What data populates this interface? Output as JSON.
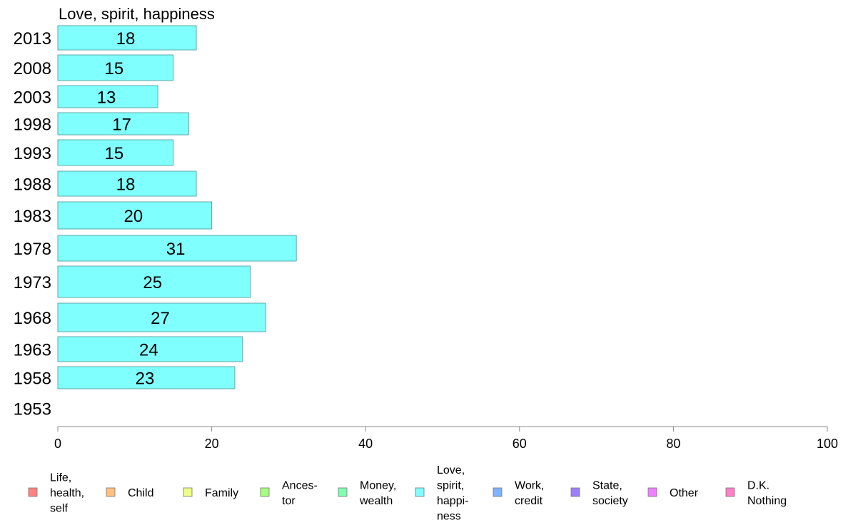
{
  "chart_data": {
    "type": "bar",
    "orientation": "horizontal",
    "title": "Love, spirit, happiness",
    "categories": [
      "2013",
      "2008",
      "2003",
      "1998",
      "1993",
      "1988",
      "1983",
      "1978",
      "1973",
      "1968",
      "1963",
      "1958",
      "1953"
    ],
    "values": [
      18,
      15,
      13,
      17,
      15,
      18,
      20,
      31,
      25,
      27,
      24,
      23,
      null
    ],
    "value_labels": [
      "18",
      "15",
      "13",
      "17",
      "15",
      "18",
      "20",
      "31",
      "25",
      "27",
      "24",
      "23",
      ""
    ],
    "xlim": [
      0,
      100
    ],
    "xticks": [
      "0",
      "20",
      "40",
      "60",
      "80",
      "100"
    ],
    "grid": false,
    "legend_position": "bottom",
    "bar_color": "#80ffff",
    "legend": [
      {
        "label": "Life, health, self",
        "lines": [
          "Life,",
          "health,",
          "self"
        ],
        "color": "#ff8080"
      },
      {
        "label": "Child",
        "lines": [
          "Child"
        ],
        "color": "#ffc080"
      },
      {
        "label": "Family",
        "lines": [
          "Family"
        ],
        "color": "#ecff80"
      },
      {
        "label": "Ances-tor",
        "lines": [
          "Ances-",
          "tor"
        ],
        "color": "#a6ff80"
      },
      {
        "label": "Money, wealth",
        "lines": [
          "Money,",
          "wealth"
        ],
        "color": "#80ffb3"
      },
      {
        "label": "Love, spirit, happi-ness",
        "lines": [
          "Love,",
          "spirit,",
          "happi-",
          "ness"
        ],
        "color": "#80ffff"
      },
      {
        "label": "Work, credit",
        "lines": [
          "Work,",
          "credit"
        ],
        "color": "#80b3ff"
      },
      {
        "label": "State, society",
        "lines": [
          "State,",
          "society"
        ],
        "color": "#9a80ff"
      },
      {
        "label": "Other",
        "lines": [
          "Other"
        ],
        "color": "#f080ff"
      },
      {
        "label": "D.K. Nothing",
        "lines": [
          "D.K.",
          "Nothing"
        ],
        "color": "#ff80c8"
      }
    ]
  }
}
